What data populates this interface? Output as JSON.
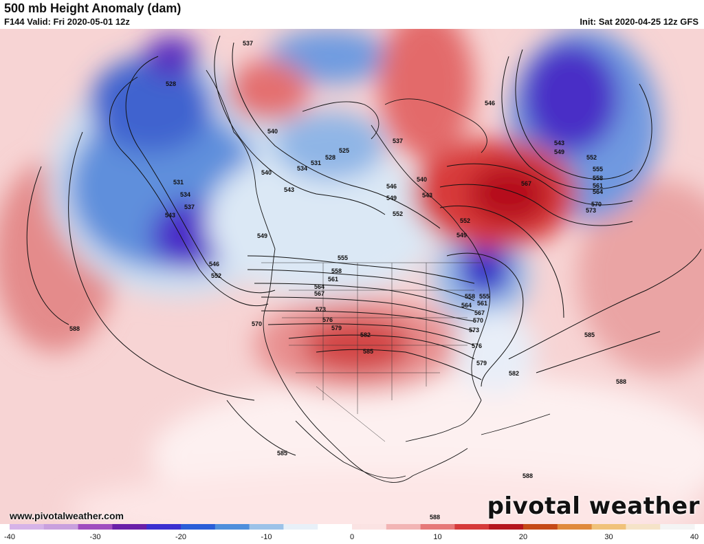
{
  "header": {
    "title": "500 mb Height Anomaly (dam)",
    "valid": "F144 Valid: Fri 2020-05-01 12z",
    "init": "Init: Sat 2020-04-25 12z GFS"
  },
  "footer": {
    "url": "www.pivotalweather.com",
    "brand": "pivotal weather"
  },
  "map": {
    "product": "500 mb height anomaly",
    "contour_labels": {
      "l528": "528",
      "l531": "531",
      "l534": "534",
      "l537": "537",
      "l540": "540",
      "l543": "543",
      "l546": "546",
      "l549": "549",
      "l552": "552",
      "l555": "555",
      "l558": "558",
      "l561": "561",
      "l564": "564",
      "l567": "567",
      "l570": "570",
      "l573": "573",
      "l576": "576",
      "l579": "579",
      "l582": "582",
      "l585": "585",
      "l588": "588"
    },
    "colors": {
      "strong_negative": "#3c2bd1",
      "negative": "#4f7fd9",
      "weak_negative": "#cfe0f2",
      "neutral": "#ffffff",
      "weak_positive": "#f6cfcf",
      "positive": "#e36b6b",
      "strong_positive": "#c8102e"
    }
  },
  "colorbar": {
    "ticks": [
      "-40",
      "-30",
      "-20",
      "-10",
      "0",
      "10",
      "20",
      "30",
      "40"
    ],
    "range": [
      -40,
      40
    ],
    "stops": [
      "#d6b3e8",
      "#c9a0de",
      "#a04cbf",
      "#6a1fa8",
      "#3b2fd0",
      "#2a5ed8",
      "#4f8fdc",
      "#9cc2e8",
      "#e8f0f8",
      "#ffffff",
      "#fbe3e3",
      "#f2b5b5",
      "#e67878",
      "#d63a3a",
      "#b5161e",
      "#c64a17",
      "#e08a3c",
      "#f0c27a",
      "#f5e3c8",
      "#f4f4f4"
    ]
  }
}
